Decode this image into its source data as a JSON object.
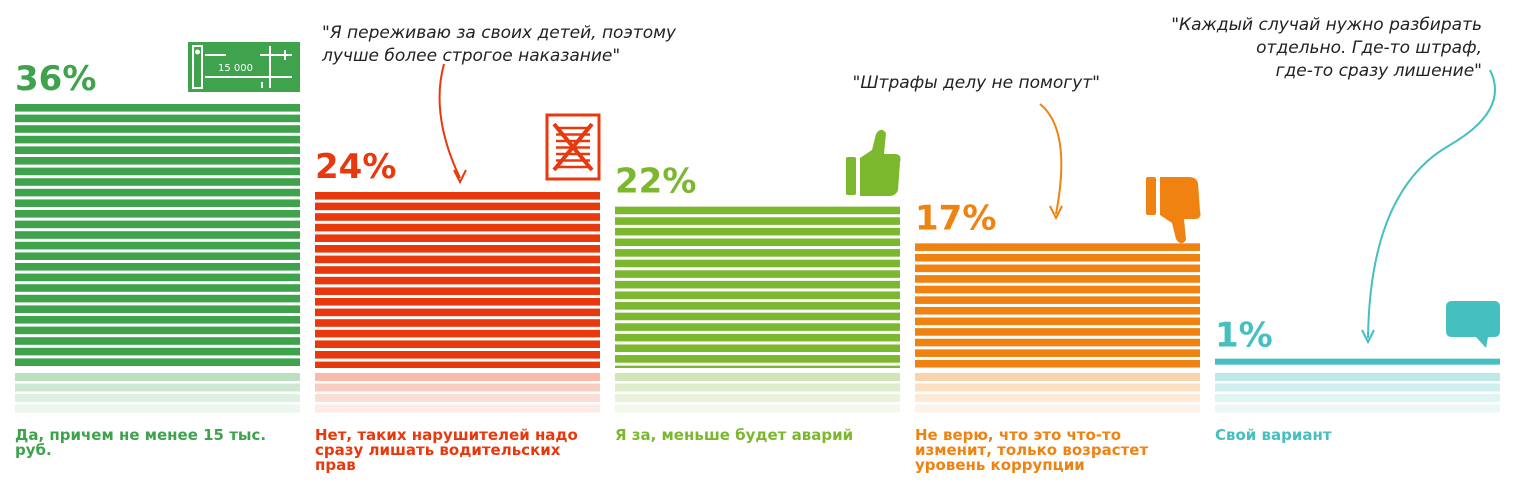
{
  "chart_data": {
    "type": "bar",
    "categories": [
      "Да, причем не менее 15 тыс. руб.",
      "Нет, таких нарушителей надо сразу лишать водительских прав",
      "Я за, меньше будет аварий",
      "Не верю, что это что-то изменит, только возрастет уровень коррупции",
      "Свой вариант"
    ],
    "values": [
      36,
      24,
      22,
      17,
      1
    ],
    "labels": [
      "36%",
      "24%",
      "22%",
      "17%",
      "1%"
    ],
    "colors": [
      "#3fa34d",
      "#e8380d",
      "#7bb82e",
      "#ef8210",
      "#45bfbf"
    ],
    "icons": [
      "banknote-icon",
      "crossed-document-icon",
      "thumbs-up-icon",
      "thumbs-down-icon",
      "speech-bubble-icon"
    ],
    "banknote_text": "15 000",
    "ylim": [
      0,
      36
    ]
  },
  "quotes": [
    {
      "lines": [
        "\"Я переживаю за своих детей, поэтому",
        "лучше более строгое наказание\""
      ],
      "color": "#e8380d"
    },
    {
      "lines": [
        "\"Штрафы делу не помогут\""
      ],
      "color": "#ef8210"
    },
    {
      "lines": [
        "\"Каждый случай нужно разбирать",
        "отдельно. Где-то штраф,",
        "где-то сразу лишение\""
      ],
      "color": "#45bfbf"
    }
  ]
}
